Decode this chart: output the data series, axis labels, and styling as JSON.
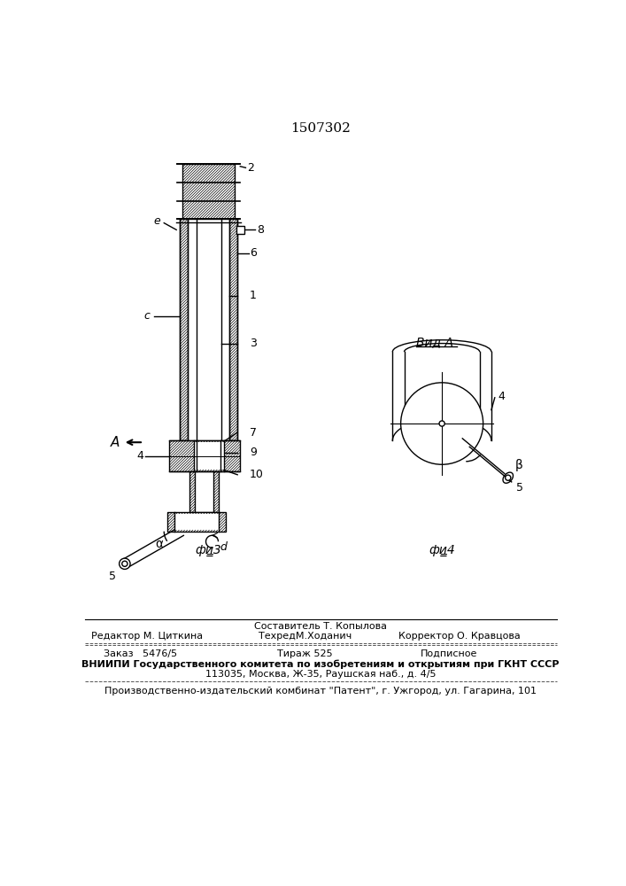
{
  "title_number": "1507302",
  "fig3_label": "фи̳3",
  "fig4_label": "фи̳4",
  "vid_a_label": "Вид A",
  "editor_label": "Редактор М. Циткина",
  "compiler_label": "Составитель Т. Копылова",
  "techred_label": "ТехредМ.Ходанич",
  "corrector_label": "Корректор О. Кравцова",
  "order_label": "Заказ   5476/5",
  "tirazh_label": "Тираж 525",
  "podpisnoe_label": "Подписное",
  "vniiipi_label": "ВНИИПИ Государственного комитета по изобретениям и открытиям при ГКНТ СССР",
  "address_label": "113035, Москва, Ж-35, Раушская наб., д. 4/5",
  "publisher_label": "Производственно-издательский комбинат \"Патент\", г. Ужгород, ул. Гагарина, 101",
  "bg_color": "#ffffff",
  "line_color": "#000000"
}
